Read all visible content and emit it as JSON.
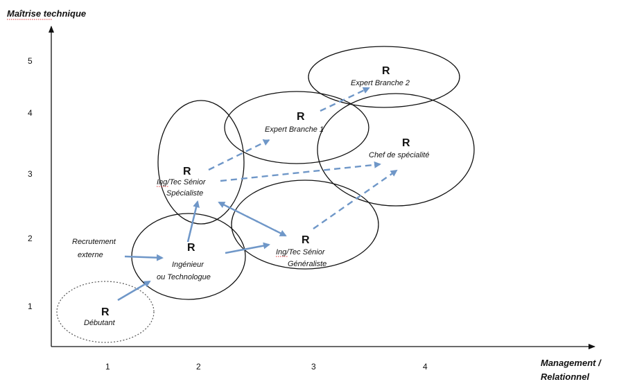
{
  "axes": {
    "y_title": "Maîtrise technique",
    "x_title_line1": "Management /",
    "x_title_line2": "Relationnel",
    "x_ticks": [
      "1",
      "2",
      "3",
      "4"
    ],
    "y_ticks": [
      "1",
      "2",
      "3",
      "4",
      "5"
    ]
  },
  "nodes": {
    "debutant": {
      "letter": "R",
      "label": "Débutant"
    },
    "ingenieur": {
      "letter": "R",
      "label_line1": "Ingénieur",
      "label_line2": "ou Technologue"
    },
    "specialiste": {
      "letter": "R",
      "label_line1": "Ing/Tec Sénior",
      "label_line2": "Spécialiste"
    },
    "generaliste": {
      "letter": "R",
      "label_line1": "Ing/Tec Sénior",
      "label_line2": "Généraliste"
    },
    "expert1": {
      "letter": "R",
      "label": "Expert Branche 1"
    },
    "expert2": {
      "letter": "R",
      "label": "Expert Branche 2"
    },
    "chef": {
      "letter": "R",
      "label": "Chef de spécialité"
    }
  },
  "recrutement": {
    "line1": "Recrutement",
    "line2": "externe"
  },
  "colors": {
    "arrow": "#6f97c8",
    "ellipse": "#111111",
    "axis": "#111111"
  }
}
